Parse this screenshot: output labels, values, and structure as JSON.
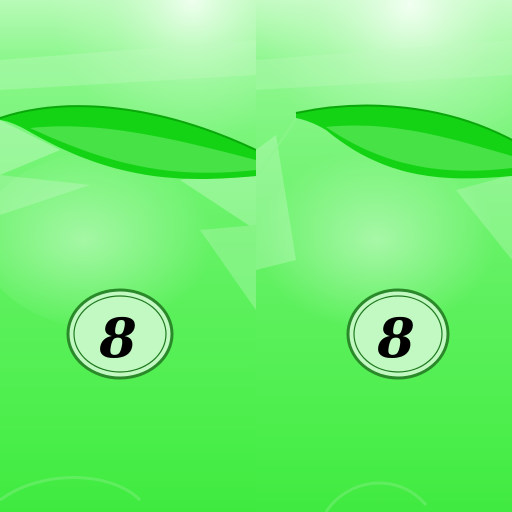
{
  "texture": {
    "panels": [
      {
        "id": "left",
        "badge": {
          "number": "8"
        }
      },
      {
        "id": "right",
        "badge": {
          "number": "8"
        }
      }
    ]
  },
  "colors": {
    "base": "#52f052",
    "highlight": "#e6ffe6",
    "stripe": "#10d010",
    "stripe_dark": "#0aa80a",
    "badge_fill": "#bdf8bd",
    "badge_ring": "#1f7a1f",
    "number": "#000000"
  }
}
